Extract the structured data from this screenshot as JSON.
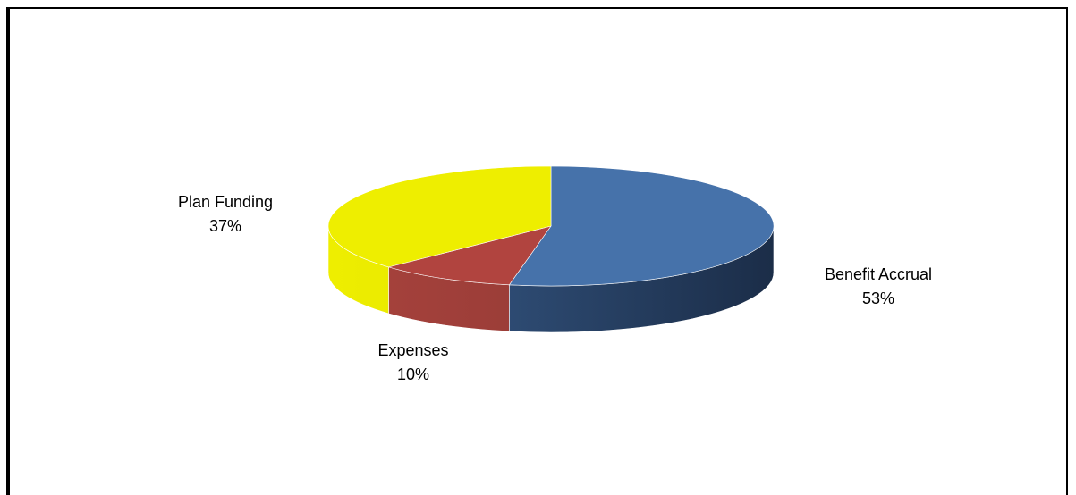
{
  "chart_data": {
    "type": "pie",
    "title": "",
    "slices": [
      {
        "label": "Benefit Accrual",
        "value": 53,
        "display_value": "53%",
        "color": "#4672aa",
        "side_light": "#3a5f8f",
        "side_dark": "#1b2d48"
      },
      {
        "label": "Expenses",
        "value": 10,
        "display_value": "10%",
        "color": "#b1443f",
        "side_light": "#a8433d",
        "side_dark": "#8a3531"
      },
      {
        "label": "Plan Funding",
        "value": 37,
        "display_value": "37%",
        "color": "#eeee00",
        "side_light": "#eeee00",
        "side_dark": "#d8d800"
      }
    ],
    "three_d": true,
    "legend": "none",
    "labels": "outside"
  }
}
